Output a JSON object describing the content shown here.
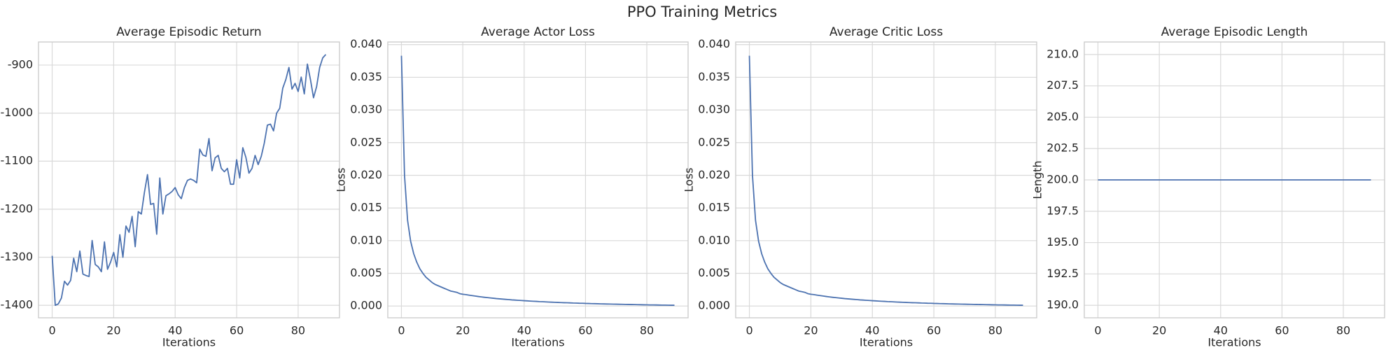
{
  "title": "PPO Training Metrics",
  "chart_data": [
    {
      "type": "line",
      "title": "Average Episodic Return",
      "x_label": "Iterations",
      "color": "#4c72b0",
      "grid": true,
      "x": [
        0,
        1,
        2,
        3,
        4,
        5,
        6,
        7,
        8,
        9,
        10,
        11,
        12,
        13,
        14,
        15,
        16,
        17,
        18,
        19,
        20,
        21,
        22,
        23,
        24,
        25,
        26,
        27,
        28,
        29,
        30,
        31,
        32,
        33,
        34,
        35,
        36,
        37,
        38,
        39,
        40,
        41,
        42,
        43,
        44,
        45,
        46,
        47,
        48,
        49,
        50,
        51,
        52,
        53,
        54,
        55,
        56,
        57,
        58,
        59,
        60,
        61,
        62,
        63,
        64,
        65,
        66,
        67,
        68,
        69,
        70,
        71,
        72,
        73,
        74,
        75,
        76,
        77,
        78,
        79,
        80,
        81,
        82,
        83,
        84,
        85,
        86,
        87,
        88,
        89
      ],
      "values": [
        -1297,
        -1400,
        -1397,
        -1385,
        -1350,
        -1358,
        -1348,
        -1302,
        -1330,
        -1287,
        -1335,
        -1338,
        -1340,
        -1265,
        -1315,
        -1320,
        -1330,
        -1268,
        -1325,
        -1310,
        -1290,
        -1320,
        -1253,
        -1300,
        -1235,
        -1248,
        -1215,
        -1278,
        -1205,
        -1210,
        -1165,
        -1128,
        -1190,
        -1188,
        -1252,
        -1135,
        -1210,
        -1172,
        -1168,
        -1163,
        -1155,
        -1170,
        -1178,
        -1155,
        -1140,
        -1137,
        -1140,
        -1145,
        -1075,
        -1087,
        -1090,
        -1053,
        -1120,
        -1093,
        -1088,
        -1115,
        -1122,
        -1115,
        -1148,
        -1148,
        -1097,
        -1135,
        -1072,
        -1092,
        -1125,
        -1115,
        -1088,
        -1107,
        -1090,
        -1062,
        -1025,
        -1023,
        -1037,
        -1000,
        -990,
        -948,
        -930,
        -905,
        -950,
        -938,
        -955,
        -925,
        -960,
        -898,
        -930,
        -968,
        -945,
        -905,
        -885,
        -878
      ],
      "xlim": [
        -4.45,
        93.45
      ],
      "xticks": [
        0,
        20,
        40,
        60,
        80
      ],
      "ylim": [
        -1426,
        -852
      ],
      "yticks": [
        -1400,
        -1300,
        -1200,
        -1100,
        -1000,
        -900
      ]
    },
    {
      "type": "line",
      "title": "Average Actor Loss",
      "x_label": "Iterations",
      "y_label": "Loss",
      "color": "#4c72b0",
      "grid": true,
      "x": [
        0,
        1,
        2,
        3,
        4,
        5,
        6,
        7,
        8,
        9,
        10,
        11,
        12,
        13,
        14,
        15,
        16,
        17,
        18,
        19,
        20,
        21,
        22,
        23,
        24,
        25,
        26,
        27,
        28,
        29,
        30,
        31,
        32,
        33,
        34,
        35,
        36,
        37,
        38,
        39,
        40,
        41,
        42,
        43,
        44,
        45,
        46,
        47,
        48,
        49,
        50,
        51,
        52,
        53,
        54,
        55,
        56,
        57,
        58,
        59,
        60,
        61,
        62,
        63,
        64,
        65,
        66,
        67,
        68,
        69,
        70,
        71,
        72,
        73,
        74,
        75,
        76,
        77,
        78,
        79,
        80,
        81,
        82,
        83,
        84,
        85,
        86,
        87,
        88,
        89
      ],
      "values": [
        0.0383,
        0.02,
        0.0131,
        0.0099,
        0.008,
        0.0067,
        0.0057,
        0.005,
        0.0044,
        0.004,
        0.0036,
        0.0033,
        0.0031,
        0.0029,
        0.0027,
        0.0025,
        0.0023,
        0.0022,
        0.0021,
        0.0019,
        0.0018,
        0.00175,
        0.00167,
        0.0016,
        0.00153,
        0.00146,
        0.0014,
        0.00134,
        0.00129,
        0.00124,
        0.00119,
        0.00114,
        0.0011,
        0.00106,
        0.00102,
        0.00098,
        0.00094,
        0.00091,
        0.00088,
        0.00085,
        0.00082,
        0.00079,
        0.00076,
        0.00073,
        0.00071,
        0.00068,
        0.00066,
        0.00064,
        0.00061,
        0.00059,
        0.00057,
        0.00055,
        0.00053,
        0.00051,
        0.0005,
        0.00048,
        0.00046,
        0.00045,
        0.00043,
        0.00042,
        0.0004,
        0.00039,
        0.00037,
        0.00036,
        0.00035,
        0.00033,
        0.00032,
        0.00031,
        0.0003,
        0.00029,
        0.00028,
        0.00027,
        0.00026,
        0.00025,
        0.00024,
        0.00023,
        0.00022,
        0.00021,
        0.0002,
        0.00019,
        0.00018,
        0.00017,
        0.00017,
        0.00016,
        0.00015,
        0.00014,
        0.00014,
        0.00013,
        0.00012,
        0.00012
      ],
      "xlim": [
        -4.45,
        93.45
      ],
      "xticks": [
        0,
        20,
        40,
        60,
        80
      ],
      "ylim": [
        -0.0018,
        0.0404
      ],
      "yticks": [
        {
          "value": 0,
          "label": "0.000"
        },
        {
          "value": 0.005,
          "label": "0.005"
        },
        {
          "value": 0.01,
          "label": "0.010"
        },
        {
          "value": 0.015,
          "label": "0.015"
        },
        {
          "value": 0.02,
          "label": "0.020"
        },
        {
          "value": 0.025,
          "label": "0.025"
        },
        {
          "value": 0.03,
          "label": "0.030"
        },
        {
          "value": 0.035,
          "label": "0.035"
        },
        {
          "value": 0.04,
          "label": "0.040"
        }
      ]
    },
    {
      "type": "line",
      "title": "Average Critic Loss",
      "x_label": "Iterations",
      "y_label": "Loss",
      "color": "#4c72b0",
      "grid": true,
      "x": [
        0,
        1,
        2,
        3,
        4,
        5,
        6,
        7,
        8,
        9,
        10,
        11,
        12,
        13,
        14,
        15,
        16,
        17,
        18,
        19,
        20,
        21,
        22,
        23,
        24,
        25,
        26,
        27,
        28,
        29,
        30,
        31,
        32,
        33,
        34,
        35,
        36,
        37,
        38,
        39,
        40,
        41,
        42,
        43,
        44,
        45,
        46,
        47,
        48,
        49,
        50,
        51,
        52,
        53,
        54,
        55,
        56,
        57,
        58,
        59,
        60,
        61,
        62,
        63,
        64,
        65,
        66,
        67,
        68,
        69,
        70,
        71,
        72,
        73,
        74,
        75,
        76,
        77,
        78,
        79,
        80,
        81,
        82,
        83,
        84,
        85,
        86,
        87,
        88,
        89
      ],
      "values": [
        0.0383,
        0.02,
        0.0131,
        0.0099,
        0.008,
        0.0067,
        0.0057,
        0.005,
        0.0044,
        0.004,
        0.0036,
        0.0033,
        0.0031,
        0.0029,
        0.0027,
        0.0025,
        0.0023,
        0.0022,
        0.0021,
        0.0019,
        0.0018,
        0.00175,
        0.00167,
        0.0016,
        0.00153,
        0.00146,
        0.0014,
        0.00134,
        0.00129,
        0.00124,
        0.00119,
        0.00114,
        0.0011,
        0.00106,
        0.00102,
        0.00098,
        0.00094,
        0.00091,
        0.00088,
        0.00085,
        0.00082,
        0.00079,
        0.00076,
        0.00073,
        0.00071,
        0.00068,
        0.00066,
        0.00064,
        0.00061,
        0.00059,
        0.00057,
        0.00055,
        0.00053,
        0.00051,
        0.0005,
        0.00048,
        0.00046,
        0.00045,
        0.00043,
        0.00042,
        0.0004,
        0.00039,
        0.00037,
        0.00036,
        0.00035,
        0.00033,
        0.00032,
        0.00031,
        0.0003,
        0.00029,
        0.00028,
        0.00027,
        0.00026,
        0.00025,
        0.00024,
        0.00023,
        0.00022,
        0.00021,
        0.0002,
        0.00019,
        0.00018,
        0.00017,
        0.00017,
        0.00016,
        0.00015,
        0.00014,
        0.00014,
        0.00013,
        0.00012,
        0.00012
      ],
      "xlim": [
        -4.45,
        93.45
      ],
      "xticks": [
        0,
        20,
        40,
        60,
        80
      ],
      "ylim": [
        -0.0018,
        0.0404
      ],
      "yticks": [
        {
          "value": 0,
          "label": "0.000"
        },
        {
          "value": 0.005,
          "label": "0.005"
        },
        {
          "value": 0.01,
          "label": "0.010"
        },
        {
          "value": 0.015,
          "label": "0.015"
        },
        {
          "value": 0.02,
          "label": "0.020"
        },
        {
          "value": 0.025,
          "label": "0.025"
        },
        {
          "value": 0.03,
          "label": "0.030"
        },
        {
          "value": 0.035,
          "label": "0.035"
        },
        {
          "value": 0.04,
          "label": "0.040"
        }
      ]
    },
    {
      "type": "line",
      "title": "Average Episodic Length",
      "x_label": "Iterations",
      "y_label": "Length",
      "color": "#4c72b0",
      "grid": true,
      "x": [
        0,
        1,
        2,
        3,
        4,
        5,
        6,
        7,
        8,
        9,
        10,
        11,
        12,
        13,
        14,
        15,
        16,
        17,
        18,
        19,
        20,
        21,
        22,
        23,
        24,
        25,
        26,
        27,
        28,
        29,
        30,
        31,
        32,
        33,
        34,
        35,
        36,
        37,
        38,
        39,
        40,
        41,
        42,
        43,
        44,
        45,
        46,
        47,
        48,
        49,
        50,
        51,
        52,
        53,
        54,
        55,
        56,
        57,
        58,
        59,
        60,
        61,
        62,
        63,
        64,
        65,
        66,
        67,
        68,
        69,
        70,
        71,
        72,
        73,
        74,
        75,
        76,
        77,
        78,
        79,
        80,
        81,
        82,
        83,
        84,
        85,
        86,
        87,
        88,
        89
      ],
      "values": [
        200,
        200,
        200,
        200,
        200,
        200,
        200,
        200,
        200,
        200,
        200,
        200,
        200,
        200,
        200,
        200,
        200,
        200,
        200,
        200,
        200,
        200,
        200,
        200,
        200,
        200,
        200,
        200,
        200,
        200,
        200,
        200,
        200,
        200,
        200,
        200,
        200,
        200,
        200,
        200,
        200,
        200,
        200,
        200,
        200,
        200,
        200,
        200,
        200,
        200,
        200,
        200,
        200,
        200,
        200,
        200,
        200,
        200,
        200,
        200,
        200,
        200,
        200,
        200,
        200,
        200,
        200,
        200,
        200,
        200,
        200,
        200,
        200,
        200,
        200,
        200,
        200,
        200,
        200,
        200,
        200,
        200,
        200,
        200,
        200,
        200,
        200,
        200,
        200,
        200
      ],
      "xlim": [
        -4.45,
        93.45
      ],
      "xticks": [
        0,
        20,
        40,
        60,
        80
      ],
      "ylim": [
        189,
        211
      ],
      "yticks": [
        {
          "value": 190,
          "label": "190.0"
        },
        {
          "value": 192.5,
          "label": "192.5"
        },
        {
          "value": 195,
          "label": "195.0"
        },
        {
          "value": 197.5,
          "label": "197.5"
        },
        {
          "value": 200,
          "label": "200.0"
        },
        {
          "value": 202.5,
          "label": "202.5"
        },
        {
          "value": 205,
          "label": "205.0"
        },
        {
          "value": 207.5,
          "label": "207.5"
        },
        {
          "value": 210,
          "label": "210.0"
        }
      ]
    }
  ]
}
